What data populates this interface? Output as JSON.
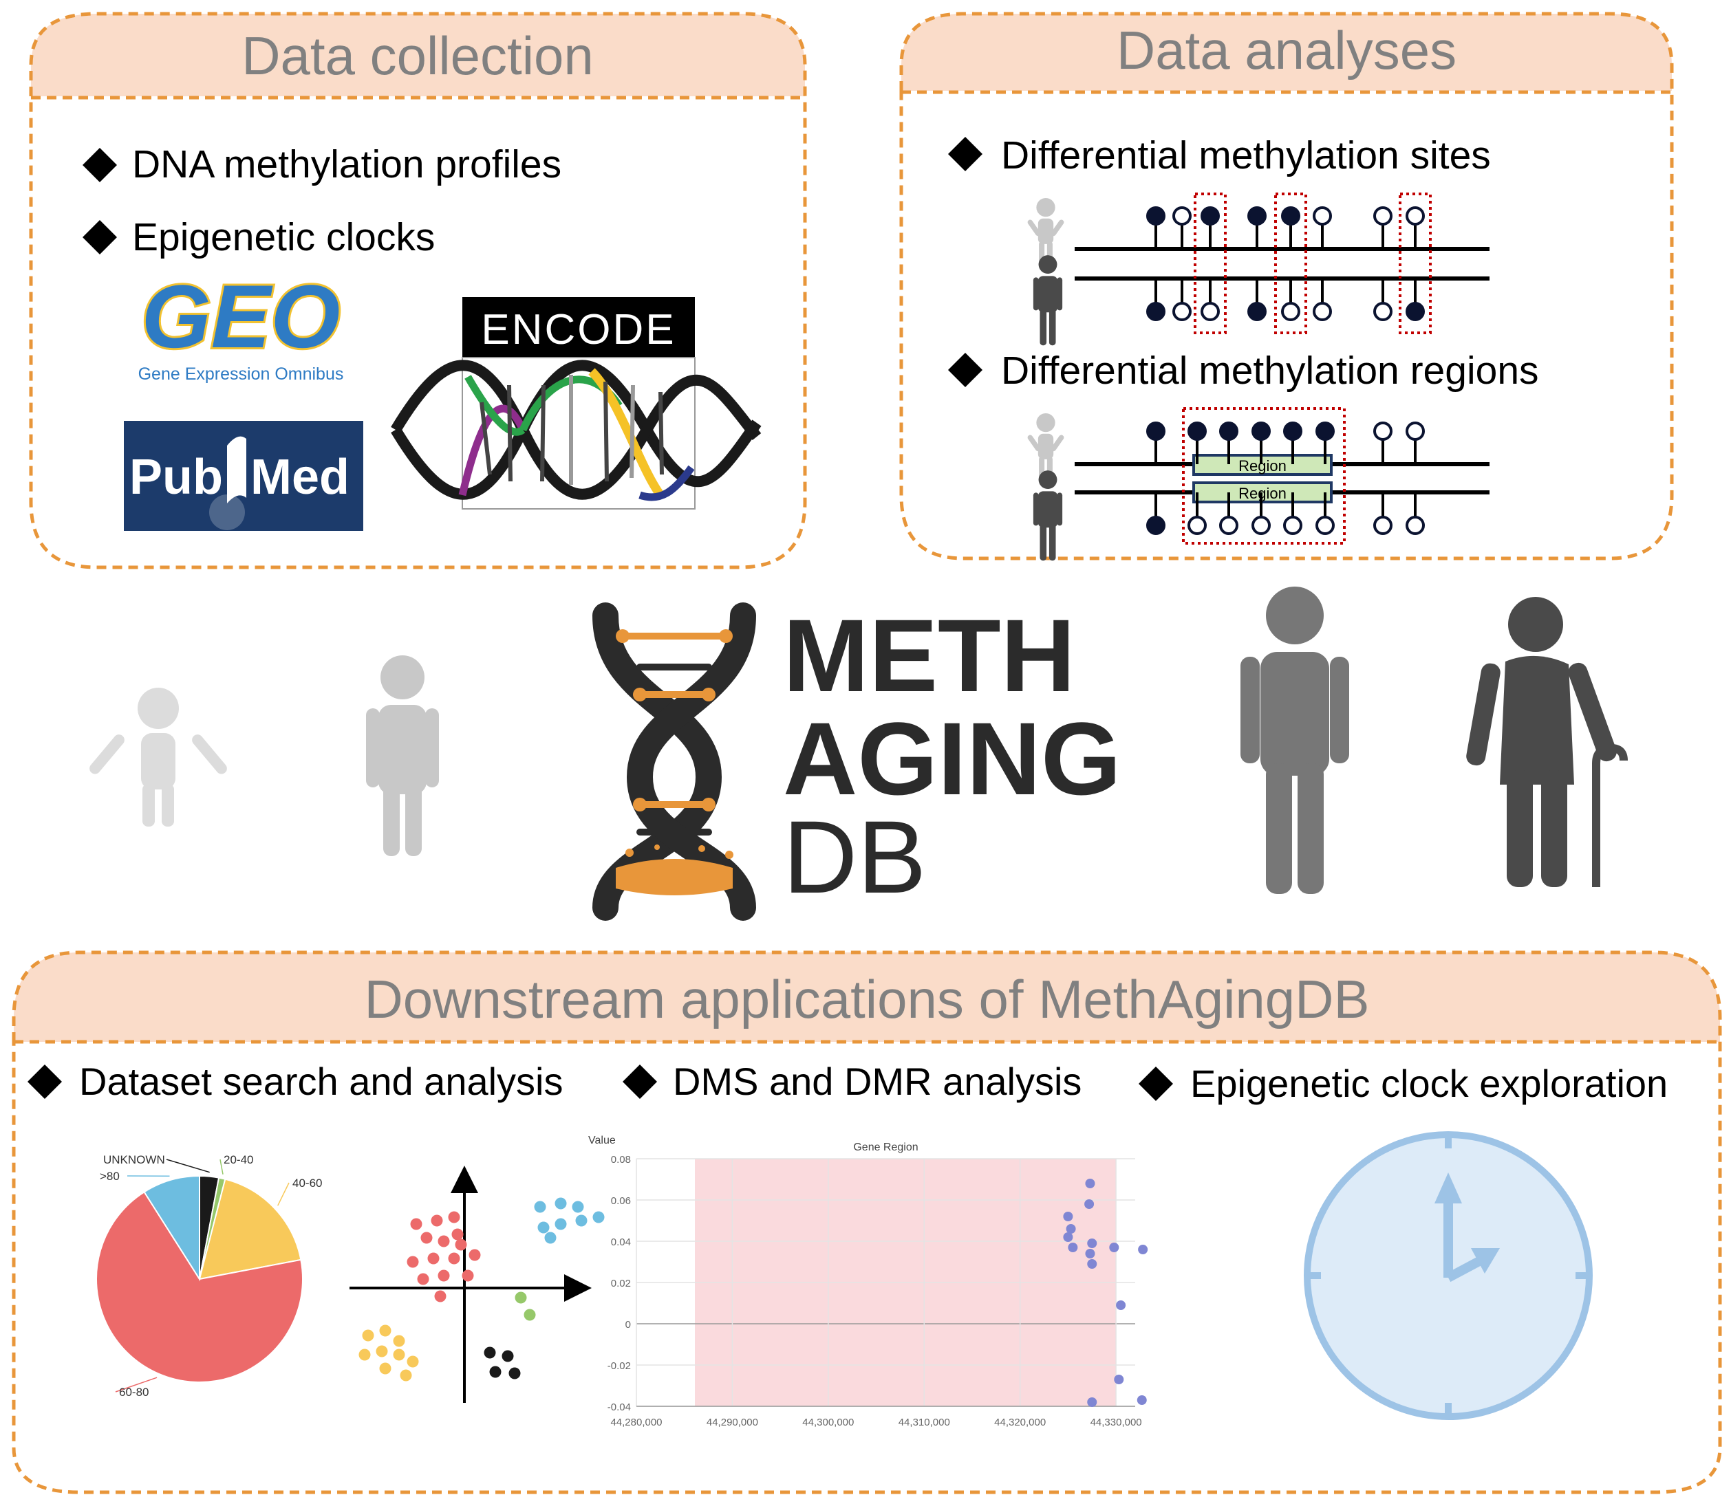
{
  "colors": {
    "dashed_border": "#E8963A",
    "header_fill": "#FADCC9",
    "header_text": "#808080",
    "pie_red": "#EC6A6A",
    "pie_yellow": "#F8C95A",
    "pie_blue": "#6DBDE0",
    "pie_black": "#1A1A1A",
    "pie_green": "#96C86A",
    "region_green": "#CFE8B8",
    "dmr_highlight": "#C00000",
    "clock_blue": "#9DC3E6",
    "clock_fill": "#DDEBF8",
    "chart_shade": "#FADADD",
    "point_purple": "#7F86D3",
    "logo_orange": "#E8963A",
    "logo_dark": "#2B2B2B"
  },
  "panels": {
    "collection": {
      "title": "Data collection",
      "bullets": [
        "DNA methylation profiles",
        "Epigenetic clocks"
      ],
      "logos": {
        "geo": "GEO",
        "geo_caption": "Gene Expression Omnibus",
        "encode": "ENCODE",
        "pubmed_a": "Pub",
        "pubmed_b": "Med"
      }
    },
    "analyses": {
      "title": "Data analyses",
      "bullets": [
        "Differential methylation sites",
        "Differential methylation regions"
      ],
      "region_label": "Region"
    },
    "downstream": {
      "title": "Downstream applications of MethAgingDB",
      "bullets": [
        "Dataset search and analysis",
        "DMS and DMR analysis",
        "Epigenetic clock exploration"
      ]
    }
  },
  "logo": {
    "line1": "METH",
    "line2": "AGING",
    "line3": "DB"
  },
  "icons": {
    "bullet": "diamond-icon",
    "people": [
      "child-icon",
      "young-adult-icon",
      "adult-icon",
      "elderly-with-cane-icon"
    ],
    "clock": "clock-icon",
    "scatter": "pca-scatter-icon"
  },
  "chart_data": [
    {
      "type": "pie",
      "categories": [
        "UNKNOWN",
        "20-40",
        "40-60",
        "60-80",
        ">80"
      ],
      "values": [
        3,
        1,
        18,
        69,
        9
      ]
    },
    {
      "type": "scatter",
      "title": "Gene Region",
      "ylabel": "Value",
      "xlim": [
        44280000,
        44332000
      ],
      "ylim": [
        -0.04,
        0.08
      ],
      "x_ticks": [
        "44,280,000",
        "44,290,000",
        "44,300,000",
        "44,310,000",
        "44,320,000",
        "44,330,000"
      ],
      "y_ticks": [
        "0.08",
        "0.06",
        "0.04",
        "0.02",
        "0",
        "-0.02",
        "-0.04"
      ],
      "shaded_region": [
        44280000,
        44330000
      ],
      "points": [
        [
          44327300,
          0.068
        ],
        [
          44327200,
          0.058
        ],
        [
          44325000,
          0.052
        ],
        [
          44325300,
          0.046
        ],
        [
          44325000,
          0.042
        ],
        [
          44325500,
          0.037
        ],
        [
          44327500,
          0.039
        ],
        [
          44327300,
          0.034
        ],
        [
          44327500,
          0.029
        ],
        [
          44329800,
          0.037
        ],
        [
          44332800,
          0.036
        ],
        [
          44330500,
          0.009
        ],
        [
          44330300,
          -0.027
        ],
        [
          44332700,
          -0.037
        ],
        [
          44327500,
          -0.038
        ]
      ]
    }
  ]
}
